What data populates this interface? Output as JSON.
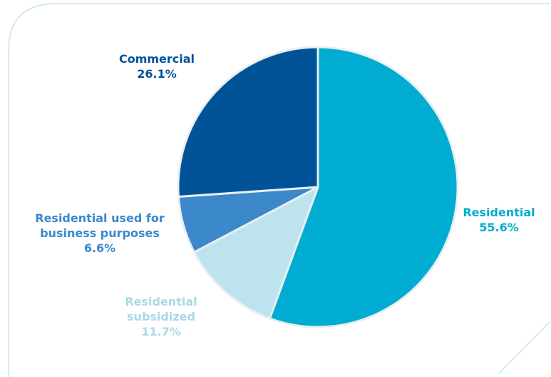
{
  "chart_data": {
    "type": "pie",
    "title": "",
    "slices": [
      {
        "label_lines": [
          "Residential"
        ],
        "value": 55.6,
        "value_text": "55.6%",
        "color": "#00acd1"
      },
      {
        "label_lines": [
          "Residential",
          "subsidized"
        ],
        "value": 11.7,
        "value_text": "11.7%",
        "color": "#bde3ef"
      },
      {
        "label_lines": [
          "Residential used for",
          "business purposes"
        ],
        "value": 6.6,
        "value_text": "6.6%",
        "color": "#3b88cb"
      },
      {
        "label_lines": [
          "Commercial"
        ],
        "value": 26.1,
        "value_text": "26.1%",
        "color": "#005397"
      }
    ],
    "slice_border_color": "#e8eef2",
    "legend": "none",
    "frame_color": "#c5e6ee"
  }
}
